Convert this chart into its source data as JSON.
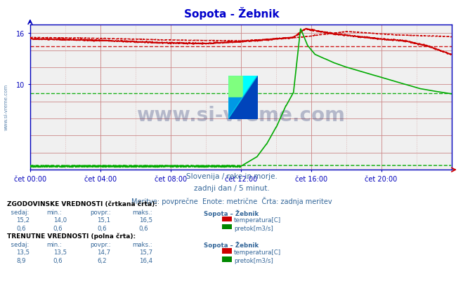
{
  "title": "Sopota - Žebnik",
  "bg_color": "#ffffff",
  "plot_bg_color": "#f0f0f0",
  "title_color": "#0000cc",
  "axis_color": "#0000bb",
  "grid_color": "#cc8888",
  "grid_minor_color": "#ddbbbb",
  "text_color": "#4488aa",
  "label_color": "#336699",
  "bold_label_color": "#000000",
  "watermark_color": "#1a2a6a",
  "subtitle_lines": [
    "Slovenija / reke in morje.",
    "zadnji dan / 5 minut.",
    "Meritve: povprečne  Enote: metrične  Črta: zadnja meritev"
  ],
  "xticklabels": [
    "čet 00:00",
    "čet 04:00",
    "čet 08:00",
    "čet 12:00",
    "čet 16:00",
    "čet 20:00"
  ],
  "xtick_positions": [
    0,
    288,
    576,
    864,
    1152,
    1440
  ],
  "total_points": 1728,
  "ylim": [
    0,
    17
  ],
  "ytick_vals": [
    10,
    16
  ],
  "temp_color": "#cc0000",
  "flow_color": "#00aa00",
  "watermark": "www.si-vreme.com",
  "side_watermark": "www.si-vreme.com",
  "hist_temp_sedaj": "15,2",
  "hist_temp_min": "14,0",
  "hist_temp_avg": "15,1",
  "hist_temp_max": "16,5",
  "hist_flow_sedaj": "0,6",
  "hist_flow_min": "0,6",
  "hist_flow_avg": "0,6",
  "hist_flow_max": "0,6",
  "curr_temp_sedaj": "13,5",
  "curr_temp_min": "13,5",
  "curr_temp_avg": "14,7",
  "curr_temp_max": "15,7",
  "curr_flow_sedaj": "8,9",
  "curr_flow_min": "0,6",
  "curr_flow_avg": "6,2",
  "curr_flow_max": "16,4",
  "hist_flow_hline": 9.0,
  "hist_temp_hline": 14.5,
  "hist_temp_hline_top": 15.8
}
